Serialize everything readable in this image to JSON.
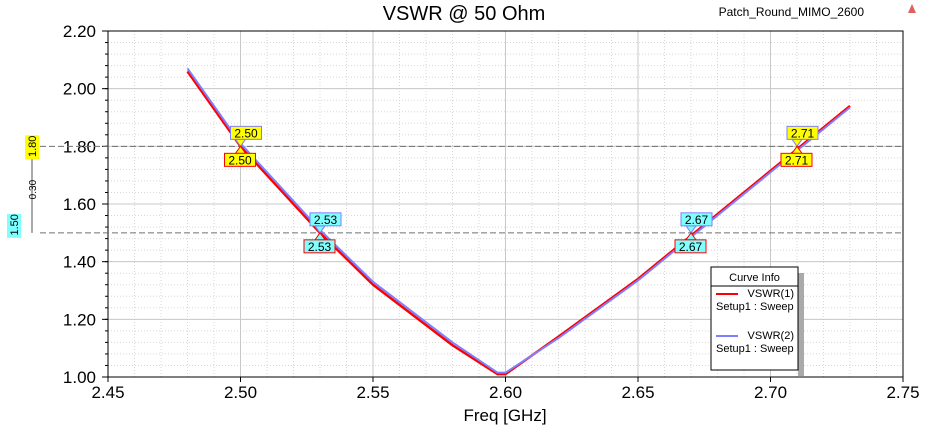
{
  "chart_data": {
    "type": "line",
    "title": "VSWR @ 50 Ohm",
    "project_label": "Patch_Round_MIMO_2600",
    "xlabel": "Freq [GHz]",
    "ylabel": "",
    "xlim": [
      2.45,
      2.75
    ],
    "ylim": [
      1.0,
      2.2
    ],
    "xticks": [
      "2.45",
      "2.50",
      "2.55",
      "2.60",
      "2.65",
      "2.70",
      "2.75"
    ],
    "yticks": [
      "1.00",
      "1.20",
      "1.40",
      "1.60",
      "1.80",
      "2.00",
      "2.20"
    ],
    "grid": true,
    "series": [
      {
        "name": "VSWR(1)",
        "sub": "Setup1 : Sweep",
        "color": "#ff0000",
        "x": [
          2.48,
          2.5,
          2.53,
          2.55,
          2.58,
          2.597,
          2.6,
          2.62,
          2.65,
          2.67,
          2.71,
          2.73
        ],
        "y": [
          2.06,
          1.8,
          1.5,
          1.32,
          1.11,
          1.01,
          1.01,
          1.14,
          1.34,
          1.49,
          1.79,
          1.94
        ]
      },
      {
        "name": "VSWR(2)",
        "sub": "Setup1 : Sweep",
        "color": "#7f7fff",
        "x": [
          2.48,
          2.5,
          2.53,
          2.55,
          2.58,
          2.597,
          2.6,
          2.62,
          2.65,
          2.67,
          2.71,
          2.73
        ],
        "y": [
          2.07,
          1.81,
          1.51,
          1.33,
          1.12,
          1.015,
          1.015,
          1.135,
          1.335,
          1.485,
          1.785,
          1.935
        ]
      }
    ],
    "legend": {
      "title": "Curve Info",
      "placement": "bottom-right"
    },
    "hlines": [
      {
        "value": 1.8,
        "label": "1.80",
        "color": "#ffff00"
      },
      {
        "value": 1.5,
        "label": "1.50",
        "color": "#80ffff"
      }
    ],
    "delta_label": "0.30",
    "markers": [
      {
        "x": 2.5,
        "y": 1.8,
        "label": "2.50",
        "color": "#ffff00",
        "pos": "above",
        "edge": "#7f7fff"
      },
      {
        "x": 2.5,
        "y": 1.8,
        "label": "2.50",
        "color": "#ffff00",
        "pos": "below",
        "edge": "#ff0000"
      },
      {
        "x": 2.53,
        "y": 1.5,
        "label": "2.53",
        "color": "#80ffff",
        "pos": "above",
        "edge": "#7f7fff"
      },
      {
        "x": 2.53,
        "y": 1.5,
        "label": "2.53",
        "color": "#80ffff",
        "pos": "below",
        "edge": "#ff0000"
      },
      {
        "x": 2.67,
        "y": 1.5,
        "label": "2.67",
        "color": "#80ffff",
        "pos": "above",
        "edge": "#7f7fff"
      },
      {
        "x": 2.67,
        "y": 1.5,
        "label": "2.67",
        "color": "#80ffff",
        "pos": "below",
        "edge": "#ff0000"
      },
      {
        "x": 2.71,
        "y": 1.8,
        "label": "2.71",
        "color": "#ffff00",
        "pos": "above",
        "edge": "#7f7fff"
      },
      {
        "x": 2.71,
        "y": 1.8,
        "label": "2.71",
        "color": "#ffff00",
        "pos": "below",
        "edge": "#ff0000"
      }
    ]
  }
}
